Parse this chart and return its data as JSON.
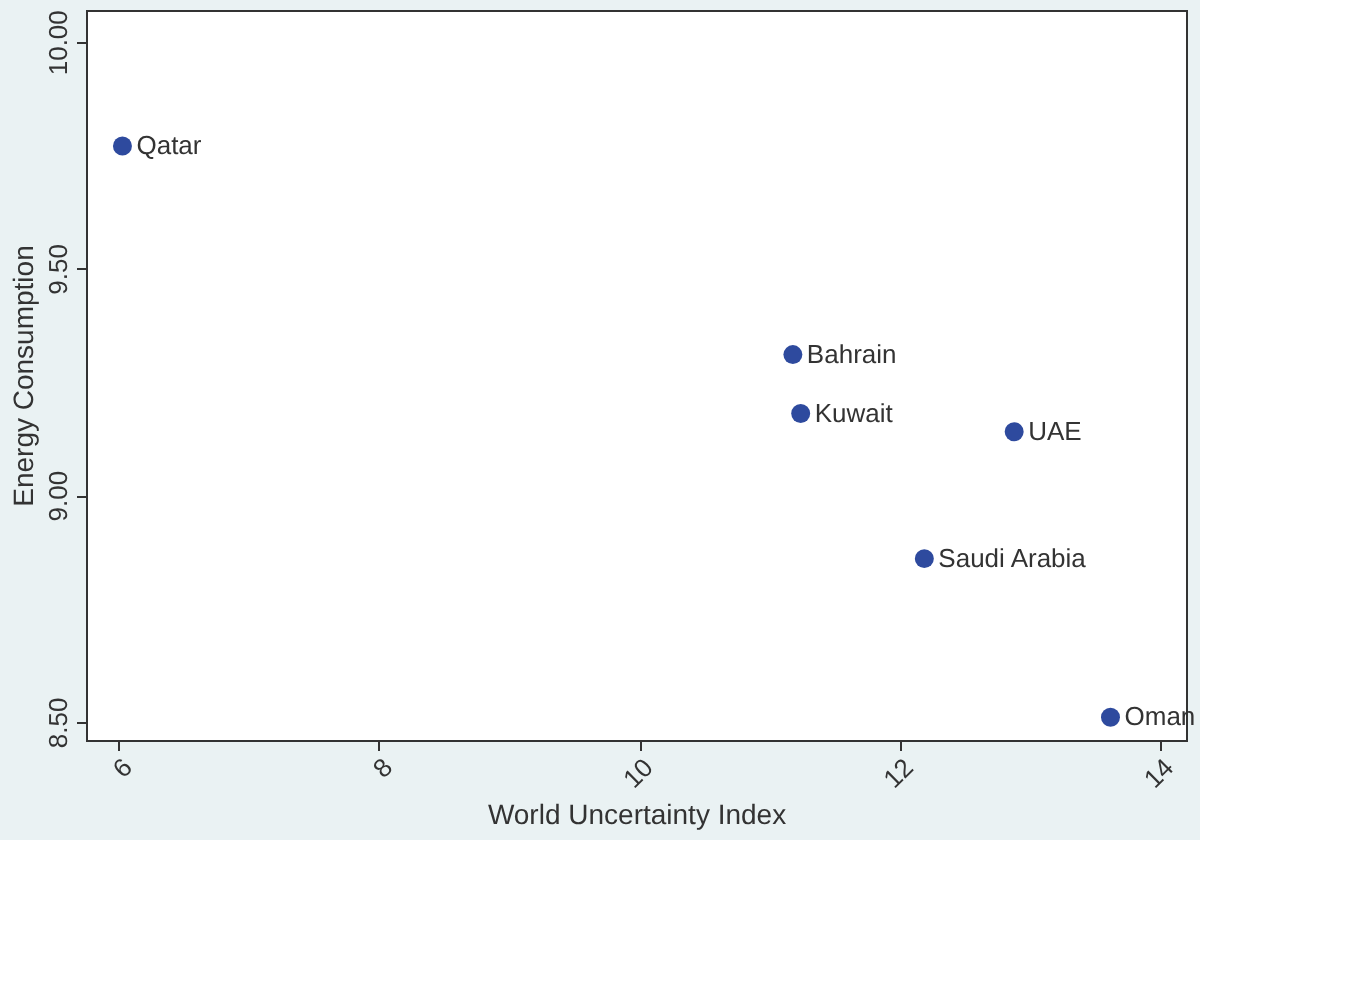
{
  "chart_data": {
    "type": "scatter",
    "xlabel": "World Uncertainty Index",
    "ylabel": "Energy Consumption",
    "x": [
      6.03,
      11.18,
      11.24,
      12.88,
      12.19,
      13.62
    ],
    "values": [
      9.77,
      9.31,
      9.18,
      9.14,
      8.86,
      8.51
    ],
    "value_labels": [
      "Qatar",
      "Bahrain",
      "Kuwait",
      "UAE",
      "Saudi Arabia",
      "Oman"
    ],
    "color": "#2e4a9e",
    "marker": "circle",
    "xlim": [
      5.75,
      14.2
    ],
    "xticks": [
      6,
      8,
      10,
      12,
      14
    ],
    "ylim": [
      8.46,
      10.07
    ],
    "yticks": [
      {
        "value": 8.5,
        "label": "8.50"
      },
      {
        "value": 9,
        "label": "9.00"
      },
      {
        "value": 9.5,
        "label": "9.50"
      },
      {
        "value": 10,
        "label": "10.00"
      }
    ],
    "grid": false
  }
}
